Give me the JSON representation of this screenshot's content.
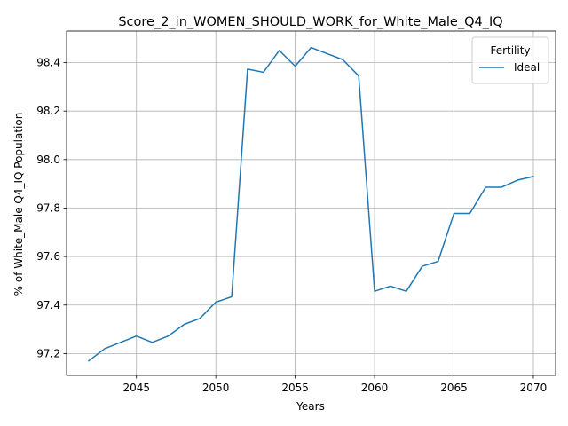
{
  "chart_data": {
    "type": "line",
    "title": "Score_2_in_WOMEN_SHOULD_WORK_for_White_Male_Q4_IQ",
    "xlabel": "Years",
    "ylabel": "% of White_Male Q4_IQ Population",
    "xlim": [
      2040.6,
      2071.4
    ],
    "ylim": [
      97.11,
      98.53
    ],
    "xticks": [
      2045,
      2050,
      2055,
      2060,
      2065,
      2070
    ],
    "yticks": [
      97.2,
      97.4,
      97.6,
      97.8,
      98.0,
      98.2,
      98.4
    ],
    "ytick_labels": [
      "97.2",
      "97.4",
      "97.6",
      "97.8",
      "98.0",
      "98.2",
      "98.4"
    ],
    "grid": true,
    "legend": {
      "title": "Fertility",
      "position": "top-right"
    },
    "series": [
      {
        "name": "Ideal",
        "color": "#1f77b4",
        "x": [
          2042,
          2043,
          2044,
          2045,
          2046,
          2047,
          2048,
          2049,
          2050,
          2051,
          2052,
          2053,
          2054,
          2055,
          2056,
          2057,
          2058,
          2059,
          2060,
          2061,
          2062,
          2063,
          2064,
          2065,
          2066,
          2067,
          2068,
          2069,
          2070
        ],
        "y": [
          97.17,
          97.22,
          97.246,
          97.272,
          97.246,
          97.272,
          97.32,
          97.345,
          97.412,
          97.434,
          98.373,
          98.36,
          98.45,
          98.385,
          98.462,
          98.437,
          98.412,
          98.345,
          97.457,
          97.478,
          97.457,
          97.56,
          97.58,
          97.778,
          97.778,
          97.886,
          97.886,
          97.915,
          97.93
        ]
      }
    ]
  }
}
